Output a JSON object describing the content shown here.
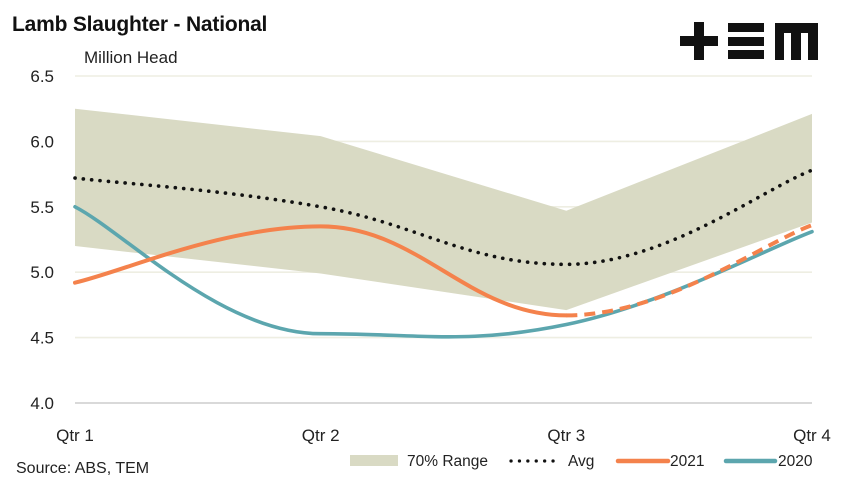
{
  "header": {
    "title": "Lamb Slaughter - National",
    "unit": "Million Head",
    "source": "Source: ABS, TEM",
    "logo": "TEM logo (+EM)"
  },
  "colors": {
    "range": "#d9dac4",
    "avg": "#111111",
    "y2021": "#f4824c",
    "y2020": "#5ca6ae",
    "grid": "#eeeee2",
    "axis": "#d9d9d9"
  },
  "chart_data": {
    "type": "line",
    "title": "Lamb Slaughter - National",
    "ylabel": "Million Head",
    "xlabel": "",
    "categories": [
      "Qtr 1",
      "Qtr 2",
      "Qtr 3",
      "Qtr 4"
    ],
    "ylim": [
      4.0,
      6.5
    ],
    "yticks": [
      "4.0",
      "4.5",
      "5.0",
      "5.5",
      "6.0",
      "6.5"
    ],
    "grid": true,
    "legend_position": "bottom-right",
    "range": {
      "name": "70% Range",
      "upper": [
        6.25,
        6.04,
        5.47,
        6.21
      ],
      "lower": [
        5.2,
        4.99,
        4.71,
        5.38
      ]
    },
    "series": [
      {
        "name": "Avg",
        "style": "dotted",
        "values": [
          5.72,
          5.5,
          5.06,
          5.78
        ]
      },
      {
        "name": "2021",
        "style": "solid-then-dashed",
        "values": [
          4.92,
          5.35,
          4.67,
          5.36
        ],
        "forecast_from_index": 2
      },
      {
        "name": "2020",
        "style": "solid",
        "values": [
          5.5,
          4.53,
          4.6,
          5.31
        ]
      }
    ],
    "legend": [
      "70% Range",
      "Avg",
      "2021",
      "2020"
    ]
  }
}
